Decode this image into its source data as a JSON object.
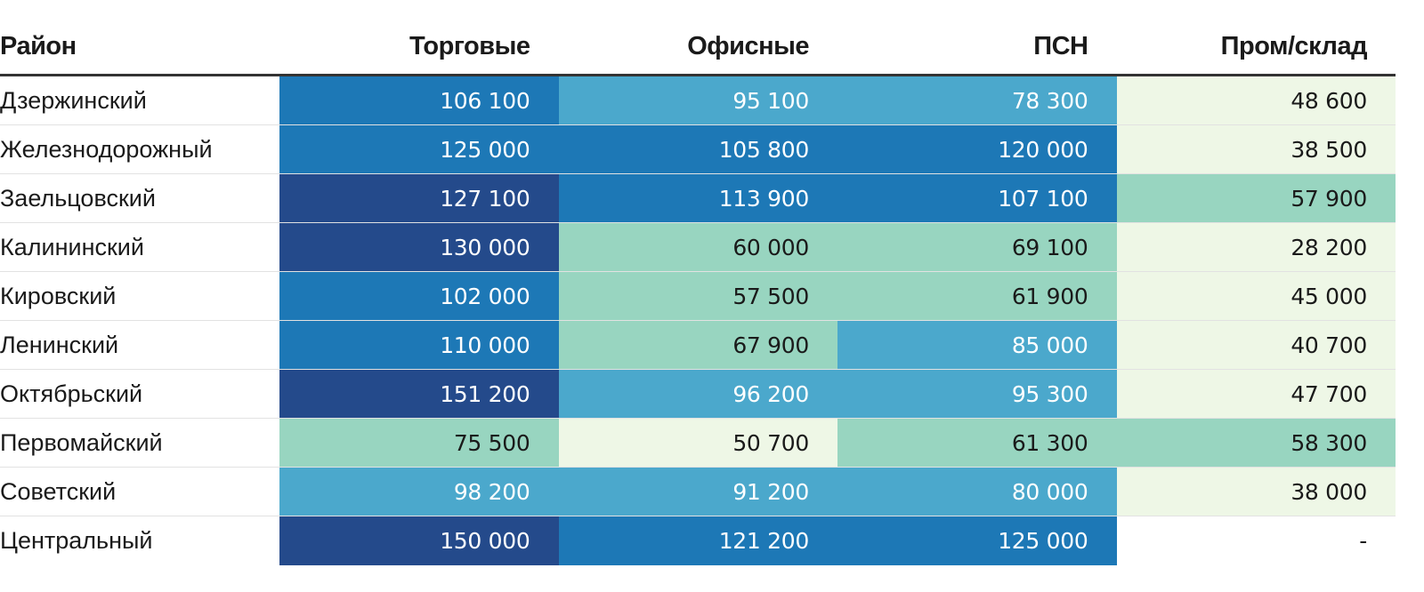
{
  "chart_data": {
    "type": "table",
    "title": "",
    "columns": [
      "Район",
      "Торговые",
      "Офисные",
      "ПСН",
      "Пром/склад"
    ],
    "rows": [
      {
        "district": "Дзержинский",
        "values": [
          "106 100",
          "95 100",
          "78 300",
          "48 600"
        ],
        "levels": [
          3,
          2,
          2,
          0
        ]
      },
      {
        "district": "Железнодорожный",
        "values": [
          "125 000",
          "105 800",
          "120 000",
          "38 500"
        ],
        "levels": [
          3,
          3,
          3,
          0
        ]
      },
      {
        "district": "Заельцовский",
        "values": [
          "127 100",
          "113 900",
          "107 100",
          "57 900"
        ],
        "levels": [
          4,
          3,
          3,
          1
        ]
      },
      {
        "district": "Калининский",
        "values": [
          "130 000",
          "60 000",
          "69 100",
          "28 200"
        ],
        "levels": [
          4,
          1,
          1,
          0
        ]
      },
      {
        "district": "Кировский",
        "values": [
          "102 000",
          "57 500",
          "61 900",
          "45 000"
        ],
        "levels": [
          3,
          1,
          1,
          0
        ]
      },
      {
        "district": "Ленинский",
        "values": [
          "110 000",
          "67 900",
          "85 000",
          "40 700"
        ],
        "levels": [
          3,
          1,
          2,
          0
        ]
      },
      {
        "district": "Октябрьский",
        "values": [
          "151 200",
          "96 200",
          "95 300",
          "47 700"
        ],
        "levels": [
          4,
          2,
          2,
          0
        ]
      },
      {
        "district": "Первомайский",
        "values": [
          "75 500",
          "50 700",
          "61 300",
          "58 300"
        ],
        "levels": [
          1,
          0,
          1,
          1
        ]
      },
      {
        "district": "Советский",
        "values": [
          "98 200",
          "91 200",
          "80 000",
          "38 000"
        ],
        "levels": [
          2,
          2,
          2,
          0
        ]
      },
      {
        "district": "Центральный",
        "values": [
          "150 000",
          "121 200",
          "125 000",
          "-"
        ],
        "levels": [
          4,
          3,
          3,
          -1
        ]
      }
    ],
    "palette": {
      "-1": {
        "bg": "#ffffff",
        "fg": "#1a1a1a"
      },
      "0": {
        "bg": "#eef7e6",
        "fg": "#1a1a1a"
      },
      "1": {
        "bg": "#98d5c0",
        "fg": "#1a1a1a"
      },
      "2": {
        "bg": "#4ba8cc",
        "fg": "#ffffff"
      },
      "3": {
        "bg": "#1d78b6",
        "fg": "#ffffff"
      },
      "4": {
        "bg": "#244a8b",
        "fg": "#ffffff"
      }
    }
  }
}
